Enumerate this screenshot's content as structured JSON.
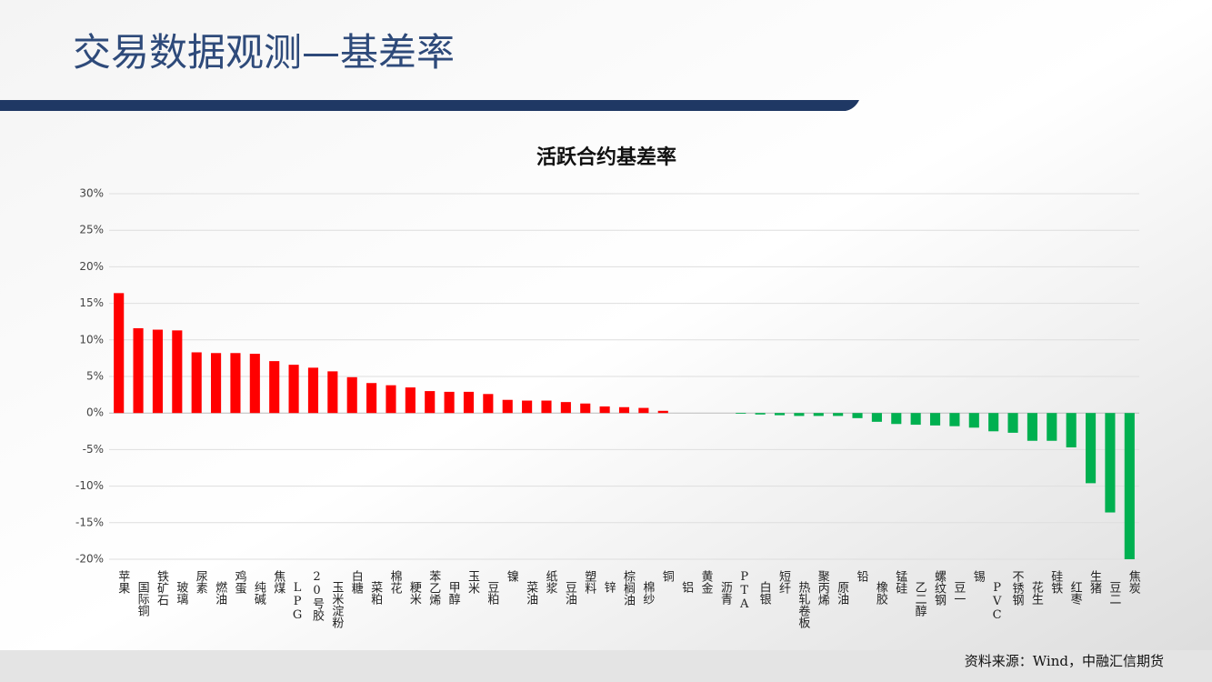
{
  "header": {
    "title": "交易数据观测—基差率"
  },
  "chart_data": {
    "type": "bar",
    "title": "活跃合约基差率",
    "categories": [
      "苹果",
      "国际铜",
      "铁矿石",
      "玻璃",
      "尿素",
      "燃油",
      "鸡蛋",
      "纯碱",
      "焦煤",
      "LPG",
      "20号胶",
      "玉米淀粉",
      "白糖",
      "菜粕",
      "棉花",
      "粳米",
      "苯乙烯",
      "甲醇",
      "玉米",
      "豆粕",
      "镍",
      "菜油",
      "纸浆",
      "豆油",
      "塑料",
      "锌",
      "棕榈油",
      "棉纱",
      "铜",
      "铝",
      "黄金",
      "沥青",
      "PTA",
      "白银",
      "短纤",
      "热轧卷板",
      "聚丙烯",
      "原油",
      "铅",
      "橡胶",
      "锰硅",
      "乙二醇",
      "螺纹钢",
      "豆一",
      "锡",
      "PVC",
      "不锈钢",
      "花生",
      "硅铁",
      "红枣",
      "生猪",
      "豆二",
      "焦炭"
    ],
    "values": [
      16.4,
      11.6,
      11.4,
      11.3,
      8.3,
      8.2,
      8.2,
      8.1,
      7.1,
      6.6,
      6.2,
      5.7,
      4.9,
      4.1,
      3.8,
      3.5,
      3.0,
      2.9,
      2.9,
      2.6,
      1.8,
      1.7,
      1.7,
      1.5,
      1.3,
      0.9,
      0.8,
      0.7,
      0.3,
      0,
      0,
      0,
      -0.1,
      -0.2,
      -0.3,
      -0.4,
      -0.4,
      -0.4,
      -0.7,
      -1.2,
      -1.5,
      -1.6,
      -1.7,
      -1.8,
      -2.0,
      -2.5,
      -2.7,
      -3.8,
      -3.8,
      -4.7,
      -9.6,
      -13.6,
      -20.0
    ],
    "positive_color": "#ff0000",
    "negative_color": "#00b050",
    "ylim": [
      -20,
      30
    ],
    "yticks": [
      {
        "value": -20,
        "label": "-20%"
      },
      {
        "value": -15,
        "label": "-15%"
      },
      {
        "value": -10,
        "label": "-10%"
      },
      {
        "value": -5,
        "label": "-5%"
      },
      {
        "value": 0,
        "label": "0%"
      },
      {
        "value": 5,
        "label": "5%"
      },
      {
        "value": 10,
        "label": "10%"
      },
      {
        "value": 15,
        "label": "15%"
      },
      {
        "value": 20,
        "label": "20%"
      },
      {
        "value": 25,
        "label": "25%"
      },
      {
        "value": 30,
        "label": "30%"
      }
    ],
    "grid": true
  },
  "footer": {
    "source": "资料来源：Wind，中融汇信期货"
  }
}
